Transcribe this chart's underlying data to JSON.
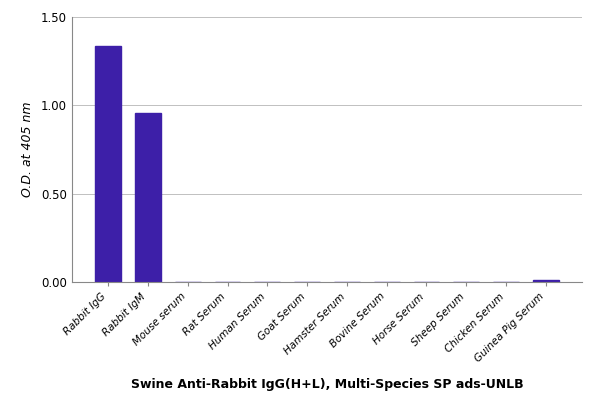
{
  "categories": [
    "Rabbit IgG",
    "Rabbit IgM",
    "Mouse serum",
    "Rat Serum",
    "Human Serum",
    "Goat Serum",
    "Hamster Serum",
    "Bovine Serum",
    "Horse Serum",
    "Sheep Serum",
    "Chicken Serum",
    "Guinea Pig Serum"
  ],
  "values": [
    1.335,
    0.955,
    0.003,
    0.002,
    0.002,
    0.002,
    0.002,
    0.002,
    0.002,
    0.002,
    0.003,
    0.01
  ],
  "bar_color": "#3d1fa8",
  "ylabel": "O.D. at 405 nm",
  "xlabel": "Swine Anti-Rabbit IgG(H+L), Multi-Species SP ads-UNLB",
  "ylim": [
    0,
    1.5
  ],
  "yticks": [
    0.0,
    0.5,
    1.0,
    1.5
  ],
  "bar_width": 0.65,
  "figsize": [
    6.0,
    4.15
  ],
  "dpi": 100,
  "background_color": "#ffffff",
  "grid_color": "#c0c0c0"
}
